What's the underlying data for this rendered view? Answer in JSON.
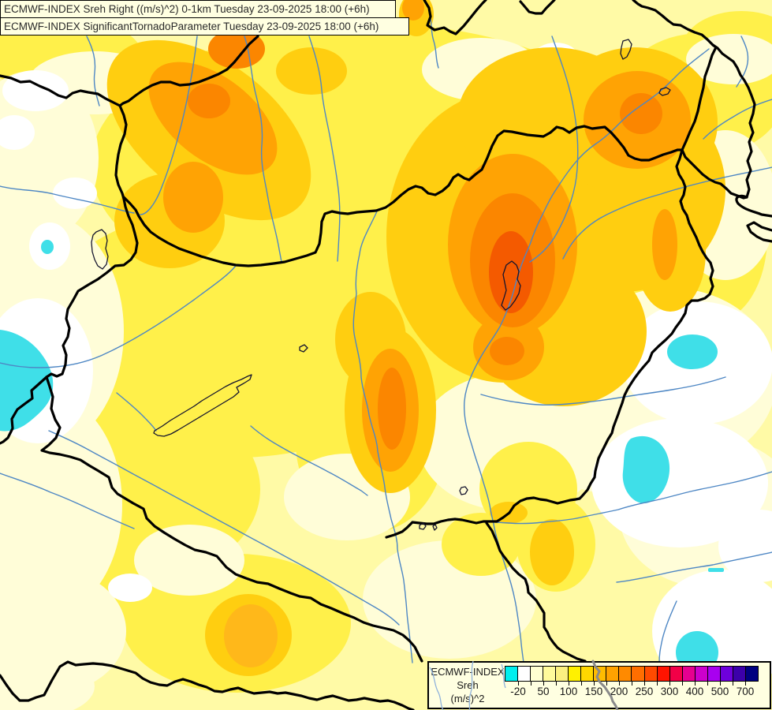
{
  "titles": {
    "line1": "ECMWF-INDEX Sreh Right ((m/s)^2) 0-1km Tuesday 23-09-2025 18:00 (+6h)",
    "line2": "ECMWF-INDEX SignificantTornadoParameter Tuesday 23-09-2025 18:00 (+6h)"
  },
  "legend": {
    "source": "ECMWF-INDEX",
    "parameter": "Sreh",
    "units": "(m/s)^2",
    "colors": [
      "#00EEEE",
      "#FFFFFF",
      "#FFFFD2",
      "#FFFA9B",
      "#FBF080",
      "#FFF100",
      "#FFD800",
      "#FFBC00",
      "#FFA200",
      "#FF8A00",
      "#FF6E00",
      "#FF4A00",
      "#FF1400",
      "#F20047",
      "#E60090",
      "#CC00CC",
      "#A800F0",
      "#6E00DC",
      "#3C00AA",
      "#000080"
    ],
    "tick_labels": [
      "-20",
      "50",
      "100",
      "150",
      "200",
      "250",
      "300",
      "400",
      "500",
      "700"
    ]
  },
  "map_palette": {
    "cyan": "#3FDFE8",
    "white": "#FFFFFF",
    "cream": "#FFFDD8",
    "pale_yellow": "#FFFAA6",
    "yellow": "#FFF04A",
    "gold": "#FFCE10",
    "amber": "#FFB81A",
    "orange": "#FFA304",
    "deep_orange": "#FB8600",
    "red_orange": "#F45A00",
    "river_blue": "#4E87C4",
    "border_black": "#000000",
    "border_gray": "#8A8A8A",
    "panel_cream": "#FFFFE1"
  }
}
